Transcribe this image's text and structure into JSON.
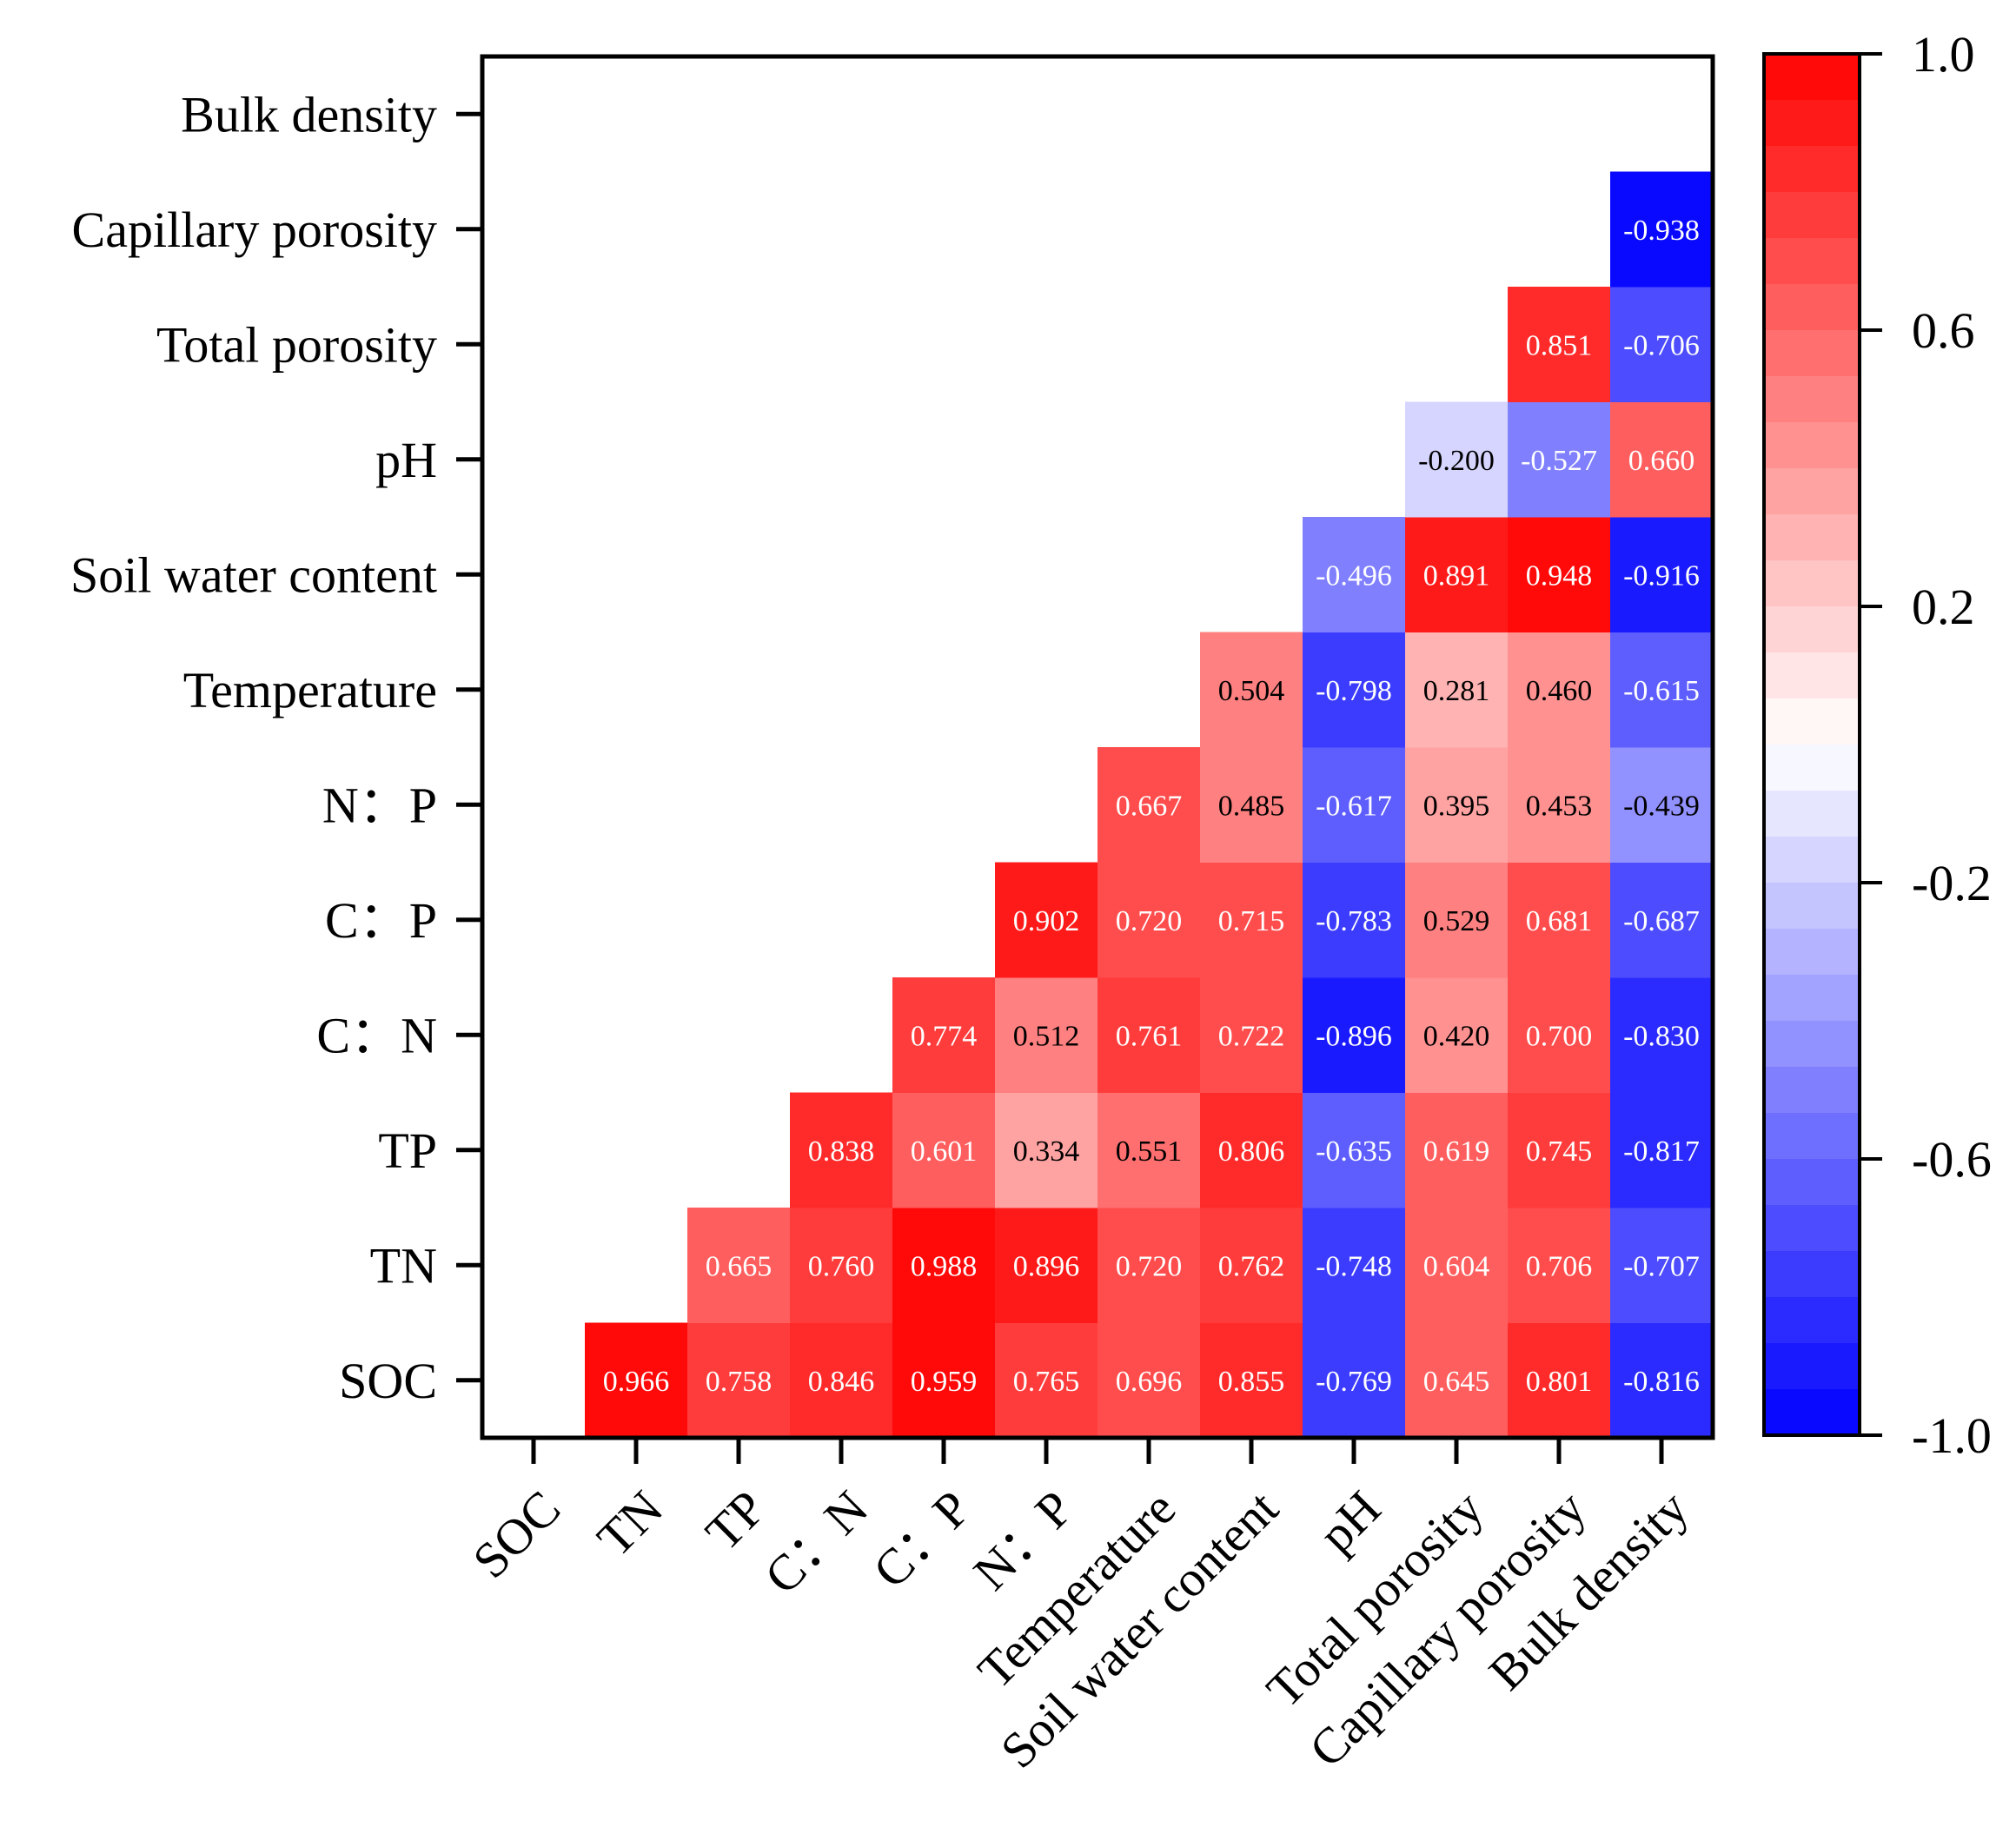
{
  "chart_data": {
    "type": "heatmap",
    "title": "",
    "variables": [
      "SOC",
      "TN",
      "TP",
      "C：N",
      "C：P",
      "N：P",
      "Temperature",
      "Soil water content",
      "pH",
      "Total porosity",
      "Capillary porosity",
      "Bulk density"
    ],
    "x_tick_labels": [
      "SOC",
      "TN",
      "TP",
      "C：N",
      "C：P",
      "N：P",
      "Temperature",
      "Soil water content",
      "pH",
      "Total porosity",
      "Capillary porosity",
      "Bulk density"
    ],
    "y_tick_labels_bottom_to_top": [
      "SOC",
      "TN",
      "TP",
      "C：N",
      "C：P",
      "N：P",
      "Temperature",
      "Soil water content",
      "pH",
      "Total porosity",
      "Capillary porosity",
      "Bulk density"
    ],
    "cells_note": "rows indexed bottom-to-top by y variable; each row lists [x_index, value] for upper-triangle cells (x_index > row_index)",
    "rows": [
      {
        "y": "SOC",
        "values": [
          [
            "TN",
            "0.966"
          ],
          [
            "TP",
            "0.758"
          ],
          [
            "C：N",
            "0.846"
          ],
          [
            "C：P",
            "0.959"
          ],
          [
            "N：P",
            "0.765"
          ],
          [
            "Temperature",
            "0.696"
          ],
          [
            "Soil water content",
            "0.855"
          ],
          [
            "pH",
            "-0.769"
          ],
          [
            "Total porosity",
            "0.645"
          ],
          [
            "Capillary porosity",
            "0.801"
          ],
          [
            "Bulk density",
            "-0.816"
          ]
        ]
      },
      {
        "y": "TN",
        "values": [
          [
            "TP",
            "0.665"
          ],
          [
            "C：N",
            "0.760"
          ],
          [
            "C：P",
            "0.988"
          ],
          [
            "N：P",
            "0.896"
          ],
          [
            "Temperature",
            "0.720"
          ],
          [
            "Soil water content",
            "0.762"
          ],
          [
            "pH",
            "-0.748"
          ],
          [
            "Total porosity",
            "0.604"
          ],
          [
            "Capillary porosity",
            "0.706"
          ],
          [
            "Bulk density",
            "-0.707"
          ]
        ]
      },
      {
        "y": "TP",
        "values": [
          [
            "C：N",
            "0.838"
          ],
          [
            "C：P",
            "0.601"
          ],
          [
            "N：P",
            "0.334"
          ],
          [
            "Temperature",
            "0.551"
          ],
          [
            "Soil water content",
            "0.806"
          ],
          [
            "pH",
            "-0.635"
          ],
          [
            "Total porosity",
            "0.619"
          ],
          [
            "Capillary porosity",
            "0.745"
          ],
          [
            "Bulk density",
            "-0.817"
          ]
        ]
      },
      {
        "y": "C：N",
        "values": [
          [
            "C：P",
            "0.774"
          ],
          [
            "N：P",
            "0.512"
          ],
          [
            "Temperature",
            "0.761"
          ],
          [
            "Soil water content",
            "0.722"
          ],
          [
            "pH",
            "-0.896"
          ],
          [
            "Total porosity",
            "0.420"
          ],
          [
            "Capillary porosity",
            "0.700"
          ],
          [
            "Bulk density",
            "-0.830"
          ]
        ]
      },
      {
        "y": "C：P",
        "values": [
          [
            "N：P",
            "0.902"
          ],
          [
            "Temperature",
            "0.720"
          ],
          [
            "Soil water content",
            "0.715"
          ],
          [
            "pH",
            "-0.783"
          ],
          [
            "Total porosity",
            "0.529"
          ],
          [
            "Capillary porosity",
            "0.681"
          ],
          [
            "Bulk density",
            "-0.687"
          ]
        ]
      },
      {
        "y": "N：P",
        "values": [
          [
            "Temperature",
            "0.667"
          ],
          [
            "Soil water content",
            "0.485"
          ],
          [
            "pH",
            "-0.617"
          ],
          [
            "Total porosity",
            "0.395"
          ],
          [
            "Capillary porosity",
            "0.453"
          ],
          [
            "Bulk density",
            "-0.439"
          ]
        ]
      },
      {
        "y": "Temperature",
        "values": [
          [
            "Soil water content",
            "0.504"
          ],
          [
            "pH",
            "-0.798"
          ],
          [
            "Total porosity",
            "0.281"
          ],
          [
            "Capillary porosity",
            "0.460"
          ],
          [
            "Bulk density",
            "-0.615"
          ]
        ]
      },
      {
        "y": "Soil water content",
        "values": [
          [
            "pH",
            "-0.496"
          ],
          [
            "Total porosity",
            "0.891"
          ],
          [
            "Capillary porosity",
            "0.948"
          ],
          [
            "Bulk density",
            "-0.916"
          ]
        ]
      },
      {
        "y": "pH",
        "values": [
          [
            "Total porosity",
            "-0.200"
          ],
          [
            "Capillary porosity",
            "-0.527"
          ],
          [
            "Bulk density",
            "0.660"
          ]
        ]
      },
      {
        "y": "Total porosity",
        "values": [
          [
            "Capillary porosity",
            "0.851"
          ],
          [
            "Bulk density",
            "-0.706"
          ]
        ]
      },
      {
        "y": "Capillary porosity",
        "values": [
          [
            "Bulk density",
            "-0.938"
          ]
        ]
      },
      {
        "y": "Bulk density",
        "values": []
      }
    ],
    "colorbar": {
      "range": [
        -1.0,
        1.0
      ],
      "ticks": [
        "1.0",
        "0.6",
        "0.2",
        "-0.2",
        "-0.6",
        "-1.0"
      ],
      "tick_values": [
        1.0,
        0.6,
        0.2,
        -0.2,
        -0.6,
        -1.0
      ],
      "steps": 30,
      "low_color": "#0000ff",
      "mid_color": "#ffffff",
      "high_color": "#ff0000"
    },
    "text_color_dark": "#000000",
    "text_color_light": "#ffffff",
    "grid": false,
    "legend": "right colorbar"
  }
}
